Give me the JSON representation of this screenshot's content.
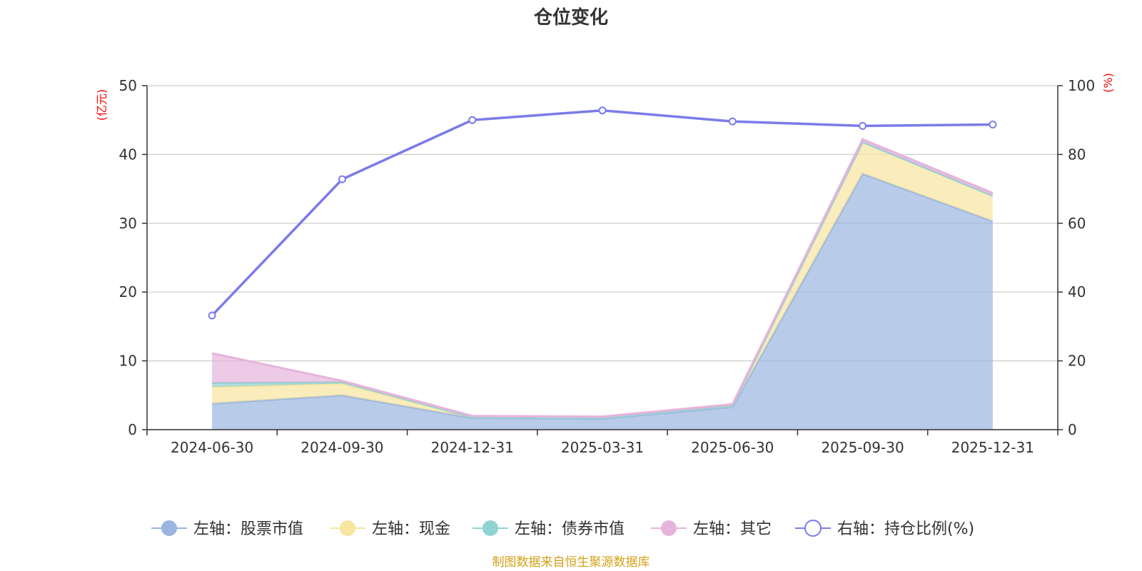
{
  "title": "仓位变化",
  "source": "制图数据来自恒生聚源数据库",
  "chart_data": {
    "type": "area",
    "title": "仓位变化",
    "categories": [
      "2024-06-30",
      "2024-09-30",
      "2024-12-31",
      "2025-03-31",
      "2025-06-30",
      "2025-09-30",
      "2025-12-31"
    ],
    "left_axis": {
      "unit": "(亿元)",
      "ylim": [
        0,
        50
      ],
      "ticks": [
        "0",
        "10",
        "20",
        "30",
        "40",
        "50"
      ]
    },
    "right_axis": {
      "unit": "(%)",
      "ylim": [
        0,
        100
      ],
      "ticks": [
        "0",
        "20",
        "40",
        "60",
        "80",
        "100"
      ]
    },
    "series": [
      {
        "name": "左轴：股票市值",
        "axis": "left",
        "stacked": true,
        "color": "#9ab5e0",
        "values": [
          3.8,
          5.0,
          1.7,
          1.6,
          3.3,
          37.2,
          30.3
        ]
      },
      {
        "name": "左轴：现金",
        "axis": "left",
        "stacked": true,
        "color": "#f8e59e",
        "values": [
          2.4,
          1.7,
          0.1,
          0.1,
          0.2,
          4.6,
          3.7
        ]
      },
      {
        "name": "左轴：债券市值",
        "axis": "left",
        "stacked": true,
        "color": "#8fd3d3",
        "values": [
          0.6,
          0.2,
          0.0,
          0.0,
          0.0,
          0.0,
          0.0
        ]
      },
      {
        "name": "左轴：其它",
        "axis": "left",
        "stacked": true,
        "color": "#e6b4db",
        "values": [
          4.3,
          0.2,
          0.2,
          0.2,
          0.2,
          0.4,
          0.4
        ]
      },
      {
        "name": "右轴：持仓比例(%)",
        "axis": "right",
        "stacked": false,
        "color": "#7b7bea",
        "values": [
          33.2,
          72.8,
          90.0,
          92.8,
          89.6,
          88.3,
          88.7
        ]
      }
    ],
    "grid": true,
    "legend_position": "bottom"
  }
}
